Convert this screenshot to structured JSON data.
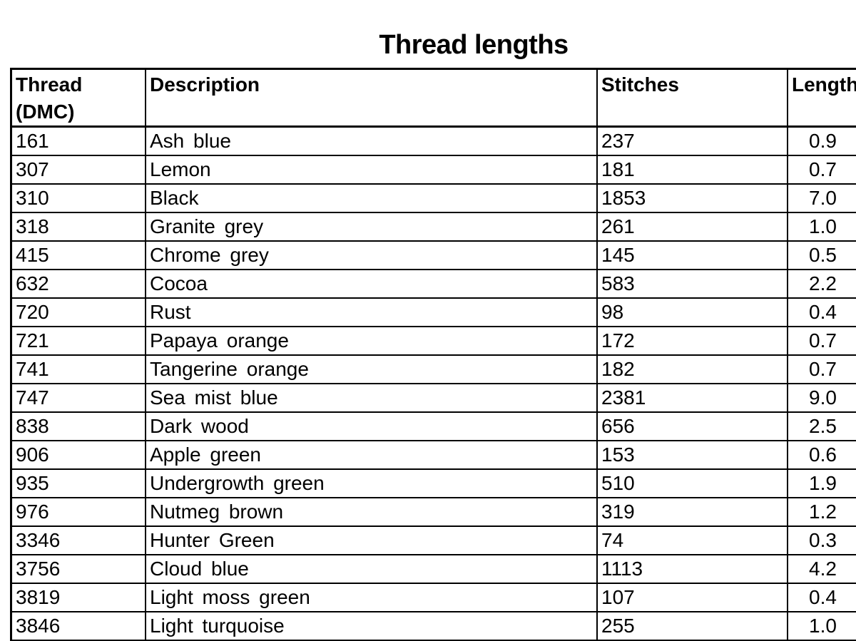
{
  "page": {
    "title": "Thread lengths"
  },
  "table": {
    "columns": [
      {
        "label": "Thread\n(DMC)"
      },
      {
        "label": "Description"
      },
      {
        "label": "Stitches"
      },
      {
        "label": "Length (m)"
      }
    ],
    "rows": [
      [
        "161",
        "Ash blue",
        "237",
        "0.9"
      ],
      [
        "307",
        "Lemon",
        "181",
        "0.7"
      ],
      [
        "310",
        "Black",
        "1853",
        "7.0"
      ],
      [
        "318",
        "Granite grey",
        "261",
        "1.0"
      ],
      [
        "415",
        "Chrome grey",
        "145",
        "0.5"
      ],
      [
        "632",
        "Cocoa",
        "583",
        "2.2"
      ],
      [
        "720",
        "Rust",
        "98",
        "0.4"
      ],
      [
        "721",
        "Papaya orange",
        "172",
        "0.7"
      ],
      [
        "741",
        "Tangerine orange",
        "182",
        "0.7"
      ],
      [
        "747",
        "Sea mist blue",
        "2381",
        "9.0"
      ],
      [
        "838",
        "Dark wood",
        "656",
        "2.5"
      ],
      [
        "906",
        "Apple green",
        "153",
        "0.6"
      ],
      [
        "935",
        "Undergrowth green",
        "510",
        "1.9"
      ],
      [
        "976",
        "Nutmeg brown",
        "319",
        "1.2"
      ],
      [
        "3346",
        "Hunter Green",
        "74",
        "0.3"
      ],
      [
        "3756",
        "Cloud blue",
        "1113",
        "4.2"
      ],
      [
        "3819",
        "Light moss green",
        "107",
        "0.4"
      ],
      [
        "3846",
        "Light turquoise",
        "255",
        "1.0"
      ]
    ]
  }
}
